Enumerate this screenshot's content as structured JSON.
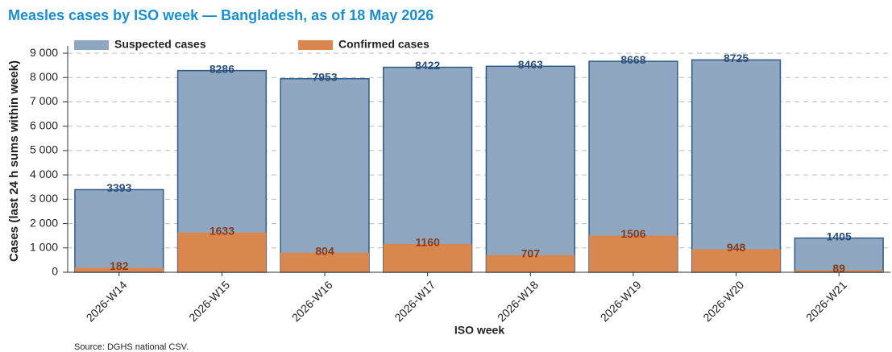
{
  "chart_data": {
    "type": "bar",
    "title": "Measles cases by ISO week — Bangladesh, as of 18 May 2026",
    "x_label": "ISO week",
    "y_label": "Cases (last 24 h sums within week)",
    "source": "Source: DGHS national CSV.",
    "categories": [
      "2026-W14",
      "2026-W15",
      "2026-W16",
      "2026-W17",
      "2026-W18",
      "2026-W19",
      "2026-W20",
      "2026-W21"
    ],
    "series": [
      {
        "name": "Suspected cases",
        "color": "#8fa7c0",
        "edge": "#2f5b84",
        "label_color": "#2b4f7c",
        "values": [
          3393,
          8286,
          7953,
          8422,
          8463,
          8668,
          8725,
          1405
        ]
      },
      {
        "name": "Confirmed cases",
        "color": "#d9874f",
        "label_color": "#8a3a17",
        "values": [
          182,
          1633,
          804,
          1160,
          707,
          1506,
          948,
          89
        ]
      }
    ],
    "ylim": [
      0,
      9300
    ],
    "yticks": [
      0,
      {
        "value": 1000,
        "label": "1 000"
      },
      {
        "value": 2000,
        "label": "2 000"
      },
      {
        "value": 3000,
        "label": "3 000"
      },
      {
        "value": 4000,
        "label": "4 000"
      },
      {
        "value": 5000,
        "label": "5 000"
      },
      {
        "value": 6000,
        "label": "6 000"
      },
      {
        "value": 7000,
        "label": "7 000"
      },
      {
        "value": 8000,
        "label": "8 000"
      },
      {
        "value": 9000,
        "label": "9 000"
      }
    ],
    "grid": true
  }
}
